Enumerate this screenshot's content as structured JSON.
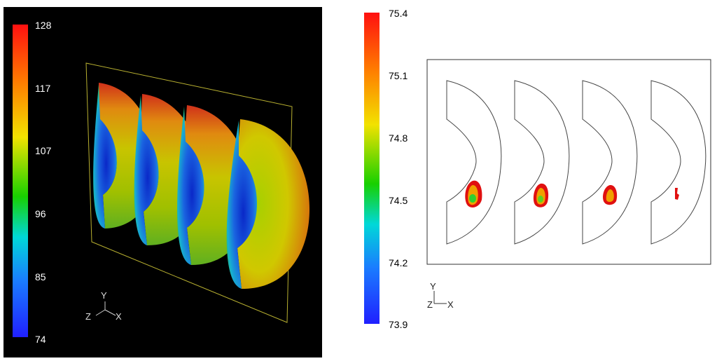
{
  "left_panel": {
    "colorbar_ticks": [
      "128",
      "117",
      "107",
      "96",
      "85",
      "74"
    ],
    "axis_labels": {
      "y": "Y",
      "z": "Z",
      "x": "X"
    }
  },
  "right_panel": {
    "colorbar_ticks": [
      "75.4",
      "75.1",
      "74.8",
      "74.5",
      "74.2",
      "73.9"
    ],
    "axis_labels": {
      "y": "Y",
      "z": "Z",
      "x": "X"
    }
  }
}
